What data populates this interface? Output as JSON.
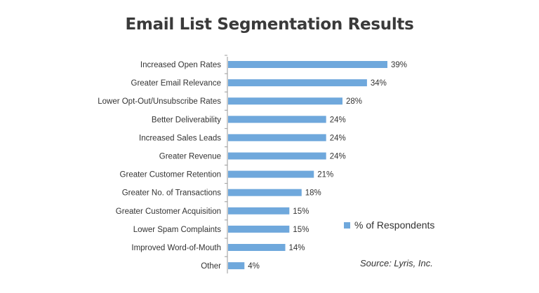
{
  "colors": {
    "bar": "#6fa8dc",
    "axis": "#9a9a9a",
    "text": "#333333"
  },
  "chart_data": {
    "type": "bar",
    "orientation": "horizontal",
    "title": "Email List Segmentation Results",
    "categories": [
      "Increased Open Rates",
      "Greater Email Relevance",
      "Lower Opt-Out/Unsubscribe Rates",
      "Better Deliverability",
      "Increased Sales Leads",
      "Greater Revenue",
      "Greater Customer Retention",
      "Greater No. of Transactions",
      "Greater Customer Acquisition",
      "Lower Spam Complaints",
      "Improved Word-of-Mouth",
      "Other"
    ],
    "series": [
      {
        "name": "% of Respondents",
        "values": [
          39,
          34,
          28,
          24,
          24,
          24,
          21,
          18,
          15,
          15,
          14,
          4
        ]
      }
    ],
    "value_labels": [
      "39%",
      "34%",
      "28%",
      "24%",
      "24%",
      "24%",
      "21%",
      "18%",
      "15%",
      "15%",
      "14%",
      "4%"
    ],
    "xlim": [
      0,
      39
    ],
    "grid": false,
    "legend_position": "right",
    "source": "Source: Lyris, Inc."
  }
}
